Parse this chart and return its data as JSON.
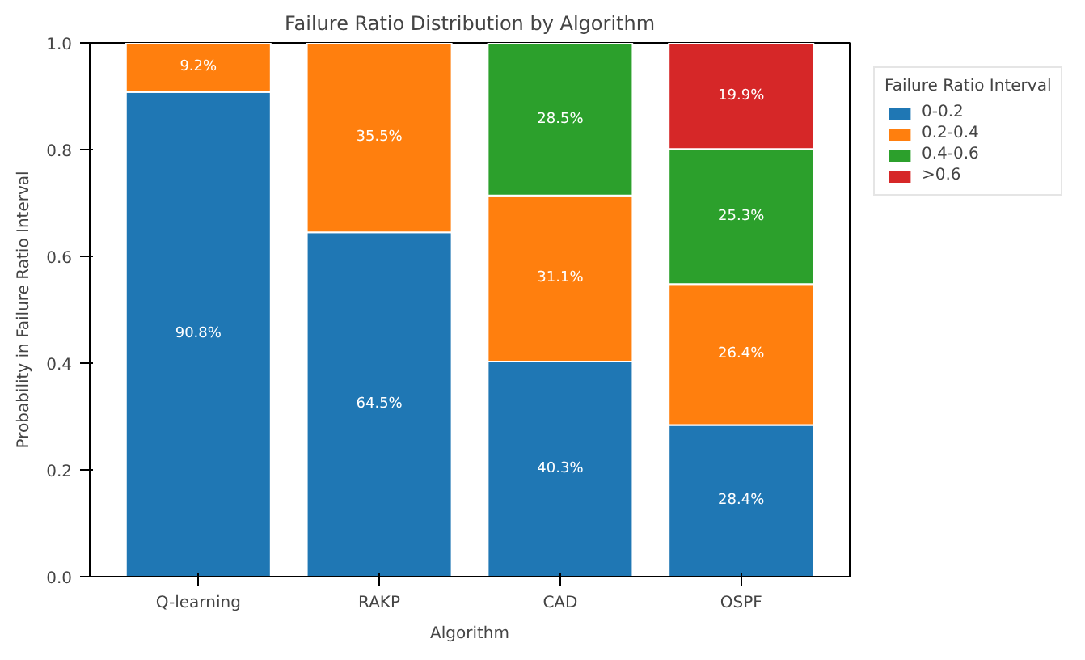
{
  "chart_data": {
    "type": "bar",
    "stacked": true,
    "title": "Failure Ratio Distribution by Algorithm",
    "xlabel": "Algorithm",
    "ylabel": "Probability in Failure Ratio Interval",
    "legend_title": "Failure Ratio Interval",
    "legend": "right",
    "grid": false,
    "categories": [
      "Q-learning",
      "RAKP",
      "CAD",
      "OSPF"
    ],
    "ylim": [
      0,
      1
    ],
    "yticks": [
      {
        "value": 0,
        "label": "0.0"
      },
      0.2,
      0.4,
      0.6,
      0.8,
      {
        "value": 1,
        "label": "1.0"
      }
    ],
    "series": [
      {
        "name": "0-0.2",
        "color": "#1f77b4",
        "values": [
          0.908,
          0.645,
          0.403,
          0.284
        ],
        "value_labels": [
          "90.8%",
          "64.5%",
          "40.3%",
          "28.4%"
        ]
      },
      {
        "name": "0.2-0.4",
        "color": "#ff7f0e",
        "values": [
          0.092,
          0.355,
          0.311,
          0.264
        ],
        "value_labels": [
          "9.2%",
          "35.5%",
          "31.1%",
          "26.4%"
        ]
      },
      {
        "name": "0.4-0.6",
        "color": "#2ca02c",
        "values": [
          null,
          null,
          0.285,
          0.253
        ],
        "value_labels": [
          null,
          null,
          "28.5%",
          "25.3%"
        ]
      },
      {
        "name": ">0.6",
        "color": "#d62728",
        "values": [
          null,
          null,
          null,
          0.199
        ],
        "value_labels": [
          null,
          null,
          null,
          "19.9%"
        ]
      }
    ]
  }
}
